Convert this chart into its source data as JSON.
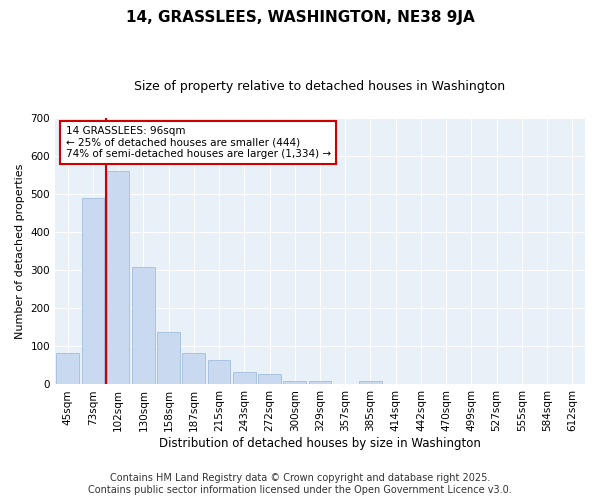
{
  "title": "14, GRASSLEES, WASHINGTON, NE38 9JA",
  "subtitle": "Size of property relative to detached houses in Washington",
  "xlabel": "Distribution of detached houses by size in Washington",
  "ylabel": "Number of detached properties",
  "categories": [
    "45sqm",
    "73sqm",
    "102sqm",
    "130sqm",
    "158sqm",
    "187sqm",
    "215sqm",
    "243sqm",
    "272sqm",
    "300sqm",
    "329sqm",
    "357sqm",
    "385sqm",
    "414sqm",
    "442sqm",
    "470sqm",
    "499sqm",
    "527sqm",
    "555sqm",
    "584sqm",
    "612sqm"
  ],
  "values": [
    82,
    490,
    560,
    307,
    138,
    83,
    63,
    33,
    28,
    10,
    10,
    0,
    10,
    0,
    0,
    0,
    0,
    0,
    0,
    0,
    0
  ],
  "bar_color": "#c9d9f0",
  "bar_edgecolor": "#9ab5d9",
  "vline_x": 1.5,
  "vline_color": "#cc0000",
  "annotation_line1": "14 GRASSLEES: 96sqm",
  "annotation_line2": "← 25% of detached houses are smaller (444)",
  "annotation_line3": "74% of semi-detached houses are larger (1,334) →",
  "annotation_box_color": "#cc0000",
  "ylim": [
    0,
    700
  ],
  "yticks": [
    0,
    100,
    200,
    300,
    400,
    500,
    600,
    700
  ],
  "footer_line1": "Contains HM Land Registry data © Crown copyright and database right 2025.",
  "footer_line2": "Contains public sector information licensed under the Open Government Licence v3.0.",
  "bg_color": "#ffffff",
  "plot_bg_color": "#e8f0f8",
  "grid_color": "#ffffff",
  "title_fontsize": 11,
  "subtitle_fontsize": 9,
  "ylabel_fontsize": 8,
  "xlabel_fontsize": 8.5,
  "tick_fontsize": 7.5,
  "footer_fontsize": 7
}
